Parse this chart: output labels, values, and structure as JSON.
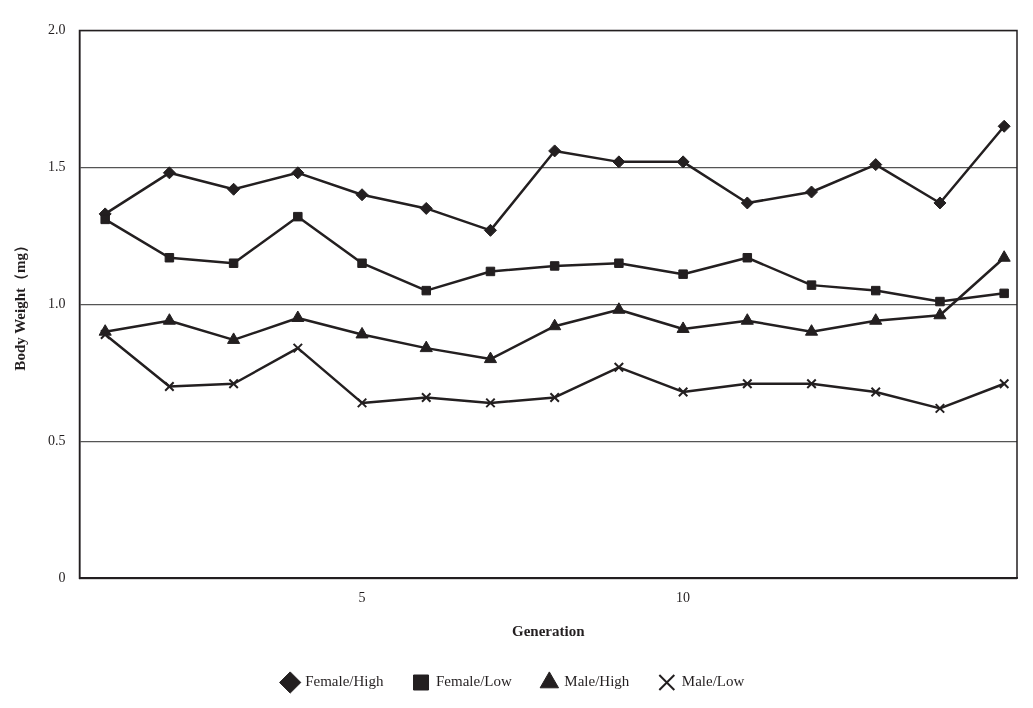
{
  "chart_data": {
    "type": "line",
    "xlabel": "Generation",
    "ylabel": "Body Weight（mg）",
    "x": [
      1,
      2,
      3,
      4,
      5,
      6,
      7,
      8,
      9,
      10,
      11,
      12,
      13,
      14,
      15
    ],
    "xlim": [
      0.6,
      15.2
    ],
    "xticks": [
      5,
      10
    ],
    "ylim": [
      0,
      2
    ],
    "yticks": [
      0,
      {
        "value": 0.5,
        "label": "0.5"
      },
      {
        "value": 1,
        "label": "1.0"
      },
      {
        "value": 1.5,
        "label": "1.5"
      },
      {
        "value": 2,
        "label": "2.0"
      }
    ],
    "grid": "y",
    "legend": "bottom",
    "line_style": "solid",
    "series": [
      {
        "name": "Female/High",
        "color": "#231f20",
        "marker": "diamond",
        "values": [
          1.33,
          1.48,
          1.42,
          1.48,
          1.4,
          1.35,
          1.27,
          1.56,
          1.52,
          1.52,
          1.37,
          1.41,
          1.51,
          1.37,
          1.65
        ]
      },
      {
        "name": "Female/Low",
        "color": "#231f20",
        "marker": "square",
        "values": [
          1.31,
          1.17,
          1.15,
          1.32,
          1.15,
          1.05,
          1.12,
          1.14,
          1.15,
          1.11,
          1.17,
          1.07,
          1.05,
          1.01,
          1.04
        ]
      },
      {
        "name": "Male/High",
        "color": "#231f20",
        "marker": "triangle",
        "values": [
          0.9,
          0.94,
          0.87,
          0.95,
          0.89,
          0.84,
          0.8,
          0.92,
          0.98,
          0.91,
          0.94,
          0.9,
          0.94,
          0.96,
          1.17
        ]
      },
      {
        "name": "Male/Low",
        "color": "#231f20",
        "marker": "cross",
        "values": [
          0.89,
          0.7,
          0.71,
          0.84,
          0.64,
          0.66,
          0.64,
          0.66,
          0.77,
          0.68,
          0.71,
          0.71,
          0.68,
          0.62,
          0.71
        ]
      }
    ]
  }
}
